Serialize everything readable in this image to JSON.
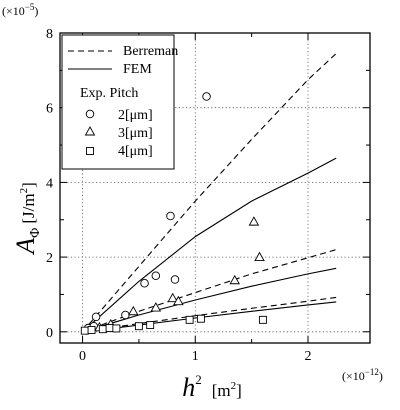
{
  "chart_data": {
    "type": "scatter",
    "ylabel_main": "A",
    "ylabel_sub": "Φ",
    "ylabel_unit": "[J/m",
    "ylabel_unit_sup": "2",
    "ylabel_unit_close": "]",
    "xlabel_main": "h",
    "xlabel_sup": "2",
    "xlabel_unit": "[m",
    "xlabel_unit_sup": "2",
    "xlabel_unit_close": "]",
    "y_multiplier_base": "(×10",
    "y_multiplier_exp": "−5",
    "y_multiplier_close": ")",
    "x_multiplier_base": "(×10",
    "x_multiplier_exp": "−12",
    "x_multiplier_close": ")",
    "xlim": [
      -0.2,
      2.55
    ],
    "ylim": [
      -0.3,
      8
    ],
    "x_ticks": [
      0,
      1,
      2
    ],
    "x_tick_labels": [
      "0",
      "1",
      "2"
    ],
    "y_ticks": [
      0,
      2,
      4,
      6,
      8
    ],
    "y_tick_labels": [
      "0",
      "2",
      "4",
      "6",
      "8"
    ],
    "x_minor_ticks": [
      0.5,
      1.5
    ],
    "y_minor_ticks": [
      1,
      3,
      5,
      7
    ],
    "grid": true,
    "legend_placement": "top-left",
    "legend": {
      "line_entries": [
        {
          "label": "Berreman",
          "style": "dashed"
        },
        {
          "label": "FEM",
          "style": "solid"
        }
      ],
      "points_title": "Exp. Pitch",
      "point_entries": [
        {
          "label": "2[μm]",
          "marker": "circle"
        },
        {
          "label": "3[μm]",
          "marker": "triangle"
        },
        {
          "label": "4[μm]",
          "marker": "square"
        }
      ]
    },
    "line_series": [
      {
        "pitch": "2[μm]",
        "style": "dashed",
        "x": [
          0,
          0.5,
          1.0,
          1.5,
          2.0,
          2.25
        ],
        "y": [
          0,
          1.75,
          3.5,
          5.15,
          6.75,
          7.45
        ]
      },
      {
        "pitch": "2[μm]",
        "style": "solid",
        "x": [
          0,
          0.5,
          1.0,
          1.5,
          2.0,
          2.25
        ],
        "y": [
          0,
          1.35,
          2.55,
          3.5,
          4.25,
          4.65
        ]
      },
      {
        "pitch": "3[μm]",
        "style": "dashed",
        "x": [
          0,
          0.5,
          1.0,
          1.5,
          2.0,
          2.25
        ],
        "y": [
          0,
          0.55,
          1.05,
          1.55,
          1.98,
          2.2
        ]
      },
      {
        "pitch": "3[μm]",
        "style": "solid",
        "x": [
          0,
          0.5,
          1.0,
          1.5,
          2.0,
          2.25
        ],
        "y": [
          0,
          0.45,
          0.85,
          1.22,
          1.55,
          1.7
        ]
      },
      {
        "pitch": "4[μm]",
        "style": "dashed",
        "x": [
          0,
          0.5,
          1.0,
          1.5,
          2.0,
          2.25
        ],
        "y": [
          0,
          0.22,
          0.43,
          0.63,
          0.82,
          0.92
        ]
      },
      {
        "pitch": "4[μm]",
        "style": "solid",
        "x": [
          0,
          0.5,
          1.0,
          1.5,
          2.0,
          2.25
        ],
        "y": [
          0,
          0.18,
          0.37,
          0.55,
          0.72,
          0.8
        ]
      }
    ],
    "point_series": [
      {
        "label": "2[μm]",
        "marker": "circle",
        "x": [
          0.05,
          0.1,
          0.12,
          0.38,
          0.55,
          0.65,
          0.78,
          0.82,
          1.1
        ],
        "y": [
          0.1,
          0.15,
          0.4,
          0.45,
          1.3,
          1.5,
          3.1,
          1.4,
          6.3
        ]
      },
      {
        "label": "3[μm]",
        "marker": "triangle",
        "x": [
          0.15,
          0.25,
          0.45,
          0.65,
          0.8,
          0.85,
          1.35,
          1.52,
          1.57
        ],
        "y": [
          0.12,
          0.2,
          0.55,
          0.65,
          0.9,
          0.82,
          1.38,
          2.95,
          2.0
        ]
      },
      {
        "label": "4[μm]",
        "marker": "square",
        "x": [
          0.02,
          0.08,
          0.18,
          0.24,
          0.3,
          0.5,
          0.6,
          0.95,
          1.05,
          1.6
        ],
        "y": [
          0.03,
          0.05,
          0.07,
          0.1,
          0.09,
          0.15,
          0.18,
          0.32,
          0.35,
          0.32
        ]
      }
    ]
  }
}
